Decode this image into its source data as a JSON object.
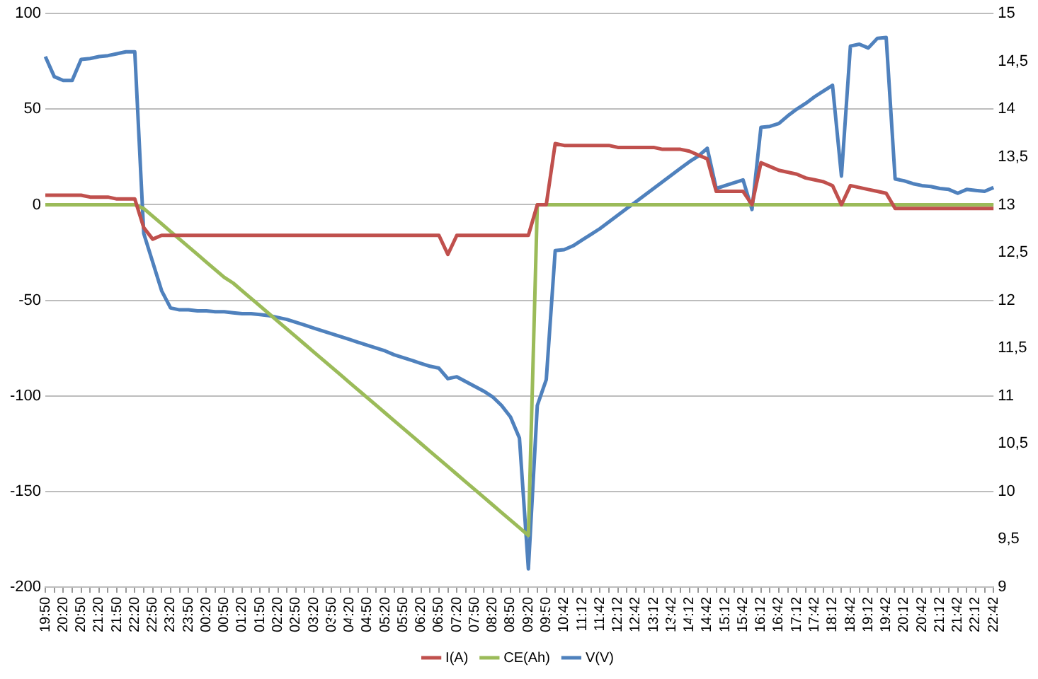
{
  "chart_data": {
    "type": "line",
    "categories": [
      "19:50",
      null,
      "20:20",
      null,
      "20:50",
      null,
      "21:20",
      null,
      "21:50",
      null,
      "22:20",
      null,
      "22:50",
      null,
      "23:20",
      null,
      "23:50",
      null,
      "00:20",
      null,
      "00:50",
      null,
      "01:20",
      null,
      "01:50",
      null,
      "02:20",
      null,
      "02:50",
      null,
      "03:20",
      null,
      "03:50",
      null,
      "04:20",
      null,
      "04:50",
      null,
      "05:20",
      null,
      "05:50",
      null,
      "06:20",
      null,
      "06:50",
      null,
      "07:20",
      null,
      "07:50",
      null,
      "08:20",
      null,
      "08:50",
      null,
      "09:20",
      null,
      "09:50",
      null,
      "10:42",
      null,
      "11:12",
      null,
      "11:42",
      null,
      "12:12",
      null,
      "12:42",
      null,
      "13:12",
      null,
      "13:42",
      null,
      "14:12",
      null,
      "14:42",
      null,
      "15:12",
      null,
      "15:42",
      null,
      "16:12",
      null,
      "16:42",
      null,
      "17:12",
      null,
      "17:42",
      null,
      "18:12",
      null,
      "18:42",
      null,
      "19:12",
      null,
      "19:42",
      null,
      "20:12",
      null,
      "20:42",
      null,
      "21:12",
      null,
      "21:42",
      null,
      "22:12",
      null,
      "22:42"
    ],
    "series": [
      {
        "name": "I(A)",
        "color": "#c0504d",
        "values": [
          5,
          5,
          5,
          5,
          5,
          4,
          4,
          4,
          3,
          3,
          3,
          -12,
          -18,
          -16,
          -16,
          -16,
          -16,
          -16,
          -16,
          -16,
          -16,
          -16,
          -16,
          -16,
          -16,
          -16,
          -16,
          -16,
          -16,
          -16,
          -16,
          -16,
          -16,
          -16,
          -16,
          -16,
          -16,
          -16,
          -16,
          -16,
          -16,
          -16,
          -16,
          -16,
          -16,
          -26,
          -16,
          -16,
          -16,
          -16,
          -16,
          -16,
          -16,
          -16,
          -16,
          0,
          0,
          32,
          31,
          31,
          31,
          31,
          31,
          31,
          30,
          30,
          30,
          30,
          30,
          29,
          29,
          29,
          28,
          26,
          24,
          7,
          7,
          7,
          7,
          0,
          22,
          20,
          18,
          17,
          16,
          14,
          13,
          12,
          10,
          0,
          10,
          9,
          8,
          7,
          6,
          -2,
          -2,
          -2,
          -2,
          -2,
          -2,
          -2,
          -2,
          -2,
          -2,
          -2,
          -2
        ]
      },
      {
        "name": "CE(Ah)",
        "color": "#9bbb59",
        "values": [
          0,
          0,
          0,
          0,
          0,
          0,
          0,
          0,
          0,
          0,
          0,
          -2,
          -6,
          -10,
          -14,
          -18,
          -22,
          -26,
          -30,
          -34,
          -38,
          -41,
          -45,
          -49,
          -53,
          -57,
          -61,
          -65,
          -69,
          -73,
          -77,
          -81,
          -85,
          -89,
          -93,
          -97,
          -101,
          -105,
          -109,
          -113,
          -117,
          -121,
          -125,
          -129,
          -133,
          -137,
          -141,
          -145,
          -149,
          -153,
          -157,
          -161,
          -165,
          -169,
          -173,
          0,
          0,
          0,
          0,
          0,
          0,
          0,
          0,
          0,
          0,
          0,
          0,
          0,
          0,
          0,
          0,
          0,
          0,
          0,
          0,
          0,
          0,
          0,
          0,
          0,
          0,
          0,
          0,
          0,
          0,
          0,
          0,
          0,
          0,
          0,
          0,
          0,
          0,
          0,
          0,
          0,
          0,
          0,
          0,
          0,
          0,
          0,
          0,
          0,
          0,
          0,
          0
        ]
      },
      {
        "name": "V(V)",
        "color": "#4f81bd",
        "axis": "y2",
        "values": [
          14.55,
          14.34,
          14.3,
          14.3,
          14.52,
          14.53,
          14.55,
          14.56,
          14.58,
          14.6,
          14.6,
          12.7,
          12.4,
          12.1,
          11.92,
          11.9,
          11.9,
          11.89,
          11.89,
          11.88,
          11.88,
          11.87,
          11.86,
          11.86,
          11.85,
          11.84,
          11.82,
          11.8,
          11.77,
          11.74,
          11.71,
          11.68,
          11.65,
          11.62,
          11.59,
          11.56,
          11.53,
          11.5,
          11.47,
          11.43,
          11.4,
          11.37,
          11.34,
          11.31,
          11.29,
          11.18,
          11.2,
          11.15,
          11.1,
          11.05,
          10.99,
          10.9,
          10.78,
          10.56,
          9.19,
          10.9,
          11.17,
          12.52,
          12.53,
          12.57,
          12.63,
          12.69,
          12.75,
          12.82,
          12.89,
          12.96,
          13.03,
          13.1,
          13.17,
          13.24,
          13.31,
          13.38,
          13.45,
          13.51,
          13.59,
          13.17,
          13.2,
          13.23,
          13.26,
          12.95,
          13.81,
          13.82,
          13.85,
          13.93,
          14,
          14.06,
          14.13,
          14.19,
          14.25,
          13.3,
          14.66,
          14.68,
          14.64,
          14.74,
          14.75,
          13.27,
          13.25,
          13.22,
          13.2,
          13.19,
          13.17,
          13.16,
          13.12,
          13.16,
          13.15,
          13.14,
          13.18
        ]
      }
    ],
    "ylim": [
      -200,
      100
    ],
    "yticks": [
      -200,
      -150,
      -100,
      -50,
      0,
      50,
      100
    ],
    "y2lim": [
      9,
      15
    ],
    "y2ticks": [
      9,
      {
        "value": 9.5,
        "label": "9,5"
      },
      10,
      {
        "value": 10.5,
        "label": "10,5"
      },
      11,
      {
        "value": 11.5,
        "label": "11,5"
      },
      12,
      {
        "value": 12.5,
        "label": "12,5"
      },
      13,
      {
        "value": 13.5,
        "label": "13,5"
      },
      14,
      {
        "value": 14.5,
        "label": "14,5"
      },
      15
    ],
    "grid": "y",
    "legend": "bottom",
    "marker": "none",
    "line_style": "solid"
  }
}
